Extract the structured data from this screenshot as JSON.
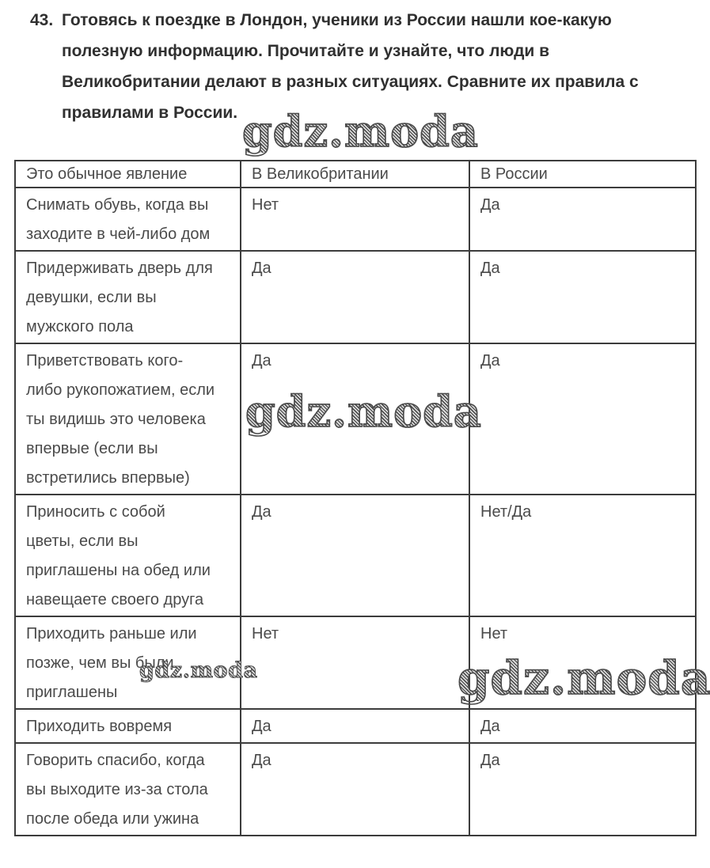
{
  "exercise": {
    "number": "43.",
    "instruction": "Готовясь к поездке в Лондон, ученики из России нашли кое-какую\nполезную информацию. Прочитайте и узнайте, что люди в\nВеликобритании делают в разных ситуациях. Сравните их правила с\nправилами в России."
  },
  "watermark": {
    "text": "gdz.moda"
  },
  "table": {
    "headers": [
      "Это обычное явление",
      "В Великобритании",
      "В России"
    ],
    "rows": [
      {
        "situation": "Снимать обувь, когда вы\nзаходите в чей-либо дом",
        "uk": "Нет",
        "russia": "Да"
      },
      {
        "situation": "Придерживать дверь для\nдевушки, если вы\nмужского пола",
        "uk": "Да",
        "russia": "Да"
      },
      {
        "situation": "Приветствовать кого-\nлибо рукопожатием, если\nты видишь это человека\nвпервые (если вы\nвстретились впервые)",
        "uk": "Да",
        "russia": "Да"
      },
      {
        "situation": "Приносить с собой\nцветы, если вы\nприглашены на обед или\nнавещаете своего друга",
        "uk": "Да",
        "russia": "Нет/Да"
      },
      {
        "situation": "Приходить раньше или\nпозже, чем вы были\nприглашены",
        "uk": "Нет",
        "russia": "Нет"
      },
      {
        "situation": "Приходить вовремя",
        "uk": "Да",
        "russia": "Да"
      },
      {
        "situation": "Говорить спасибо, когда\nвы выходите из-за стола\nпосле обеда или ужина",
        "uk": "Да",
        "russia": "Да"
      }
    ]
  }
}
